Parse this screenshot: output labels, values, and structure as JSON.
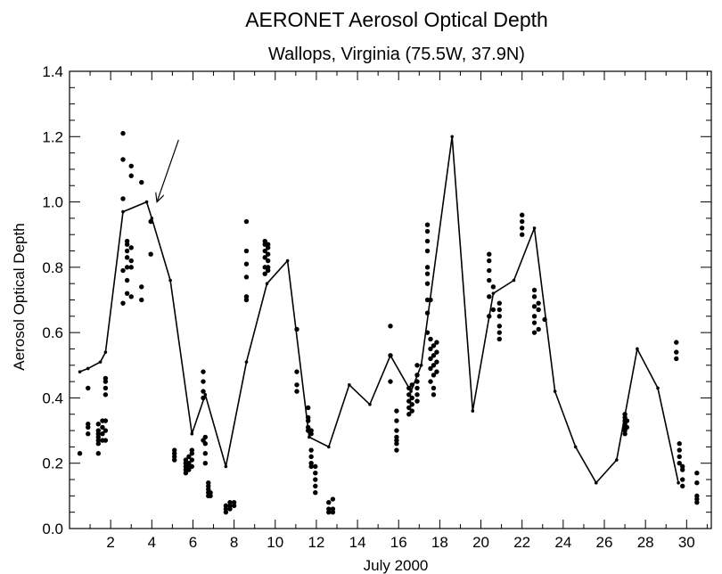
{
  "chart_data": {
    "type": "scatter",
    "title": "AERONET Aerosol Optical Depth",
    "subtitle": "Wallops, Virginia (75.5W, 37.9N)",
    "xlabel": "July 2000",
    "ylabel": "Aerosol Optical Depth",
    "xlim": [
      0,
      31.2
    ],
    "ylim": [
      0,
      1.4
    ],
    "x_ticks": [
      2,
      4,
      6,
      8,
      10,
      12,
      14,
      16,
      18,
      20,
      22,
      24,
      26,
      28,
      30
    ],
    "x_tick_labels": [
      "2",
      "4",
      "6",
      "8",
      "10",
      "12",
      "14",
      "16",
      "18",
      "20",
      "22",
      "24",
      "26",
      "28",
      "30"
    ],
    "y_ticks": [
      0.0,
      0.2,
      0.4,
      0.6,
      0.8,
      1.0,
      1.2,
      1.4
    ],
    "y_tick_labels": [
      "0.0",
      "0.2",
      "0.4",
      "0.6",
      "0.8",
      "1.0",
      "1.2",
      "1.4"
    ],
    "grid": false,
    "series": [
      {
        "style": "dots",
        "points": [
          [
            0.5,
            0.23
          ],
          [
            0.9,
            0.29
          ],
          [
            0.9,
            0.31
          ],
          [
            0.9,
            0.32
          ],
          [
            0.9,
            0.43
          ],
          [
            1.4,
            0.23
          ],
          [
            1.4,
            0.26
          ],
          [
            1.4,
            0.27
          ],
          [
            1.4,
            0.28
          ],
          [
            1.4,
            0.29
          ],
          [
            1.4,
            0.3
          ],
          [
            1.4,
            0.32
          ],
          [
            1.6,
            0.27
          ],
          [
            1.6,
            0.29
          ],
          [
            1.6,
            0.31
          ],
          [
            1.6,
            0.33
          ],
          [
            1.75,
            0.27
          ],
          [
            1.75,
            0.3
          ],
          [
            1.75,
            0.33
          ],
          [
            1.75,
            0.41
          ],
          [
            1.75,
            0.43
          ],
          [
            1.75,
            0.45
          ],
          [
            1.75,
            0.46
          ],
          [
            2.6,
            0.69
          ],
          [
            2.6,
            0.79
          ],
          [
            2.6,
            1.01
          ],
          [
            2.6,
            1.13
          ],
          [
            2.6,
            1.21
          ],
          [
            2.8,
            0.72
          ],
          [
            2.8,
            0.76
          ],
          [
            2.8,
            0.8
          ],
          [
            2.8,
            0.83
          ],
          [
            2.8,
            0.85
          ],
          [
            2.8,
            0.87
          ],
          [
            2.8,
            0.88
          ],
          [
            3.0,
            0.71
          ],
          [
            3.0,
            0.8
          ],
          [
            3.0,
            0.82
          ],
          [
            3.0,
            0.86
          ],
          [
            3.0,
            1.08
          ],
          [
            3.0,
            1.11
          ],
          [
            3.5,
            0.7
          ],
          [
            3.5,
            0.74
          ],
          [
            3.5,
            1.06
          ],
          [
            3.95,
            0.84
          ],
          [
            3.95,
            0.94
          ],
          [
            5.1,
            0.21
          ],
          [
            5.1,
            0.22
          ],
          [
            5.1,
            0.23
          ],
          [
            5.1,
            0.24
          ],
          [
            5.65,
            0.17
          ],
          [
            5.65,
            0.18
          ],
          [
            5.65,
            0.19
          ],
          [
            5.65,
            0.2
          ],
          [
            5.65,
            0.21
          ],
          [
            5.8,
            0.18
          ],
          [
            5.8,
            0.19
          ],
          [
            5.8,
            0.2
          ],
          [
            5.8,
            0.22
          ],
          [
            5.95,
            0.19
          ],
          [
            5.95,
            0.21
          ],
          [
            5.95,
            0.23
          ],
          [
            5.95,
            0.24
          ],
          [
            6.5,
            0.27
          ],
          [
            6.5,
            0.4
          ],
          [
            6.5,
            0.42
          ],
          [
            6.5,
            0.45
          ],
          [
            6.5,
            0.48
          ],
          [
            6.6,
            0.2
          ],
          [
            6.6,
            0.23
          ],
          [
            6.6,
            0.26
          ],
          [
            6.6,
            0.28
          ],
          [
            6.75,
            0.1
          ],
          [
            6.75,
            0.11
          ],
          [
            6.75,
            0.12
          ],
          [
            6.75,
            0.13
          ],
          [
            6.75,
            0.14
          ],
          [
            6.85,
            0.1
          ],
          [
            6.85,
            0.11
          ],
          [
            7.6,
            0.05
          ],
          [
            7.6,
            0.06
          ],
          [
            7.6,
            0.07
          ],
          [
            7.8,
            0.06
          ],
          [
            7.8,
            0.07
          ],
          [
            7.8,
            0.08
          ],
          [
            8.0,
            0.07
          ],
          [
            8.0,
            0.08
          ],
          [
            8.6,
            0.7
          ],
          [
            8.6,
            0.71
          ],
          [
            8.6,
            0.77
          ],
          [
            8.6,
            0.81
          ],
          [
            8.6,
            0.85
          ],
          [
            8.6,
            0.94
          ],
          [
            9.5,
            0.78
          ],
          [
            9.5,
            0.8
          ],
          [
            9.5,
            0.83
          ],
          [
            9.5,
            0.85
          ],
          [
            9.5,
            0.87
          ],
          [
            9.5,
            0.88
          ],
          [
            9.65,
            0.79
          ],
          [
            9.65,
            0.8
          ],
          [
            9.65,
            0.82
          ],
          [
            9.65,
            0.84
          ],
          [
            9.65,
            0.86
          ],
          [
            9.65,
            0.87
          ],
          [
            11.05,
            0.61
          ],
          [
            11.05,
            0.42
          ],
          [
            11.05,
            0.44
          ],
          [
            11.05,
            0.48
          ],
          [
            11.6,
            0.37
          ],
          [
            11.6,
            0.31
          ],
          [
            11.6,
            0.33
          ],
          [
            11.6,
            0.34
          ],
          [
            11.6,
            0.3
          ],
          [
            11.75,
            0.19
          ],
          [
            11.75,
            0.2
          ],
          [
            11.75,
            0.22
          ],
          [
            11.75,
            0.24
          ],
          [
            11.75,
            0.29
          ],
          [
            11.75,
            0.3
          ],
          [
            11.95,
            0.11
          ],
          [
            11.95,
            0.13
          ],
          [
            11.95,
            0.15
          ],
          [
            11.95,
            0.17
          ],
          [
            11.95,
            0.19
          ],
          [
            12.6,
            0.05
          ],
          [
            12.6,
            0.06
          ],
          [
            12.6,
            0.08
          ],
          [
            12.8,
            0.05
          ],
          [
            12.8,
            0.06
          ],
          [
            12.8,
            0.09
          ],
          [
            15.6,
            0.62
          ],
          [
            15.6,
            0.53
          ],
          [
            15.6,
            0.45
          ],
          [
            15.9,
            0.24
          ],
          [
            15.9,
            0.26
          ],
          [
            15.9,
            0.27
          ],
          [
            15.9,
            0.28
          ],
          [
            15.9,
            0.3
          ],
          [
            15.9,
            0.33
          ],
          [
            15.9,
            0.36
          ],
          [
            16.5,
            0.35
          ],
          [
            16.5,
            0.37
          ],
          [
            16.5,
            0.39
          ],
          [
            16.5,
            0.41
          ],
          [
            16.5,
            0.43
          ],
          [
            16.65,
            0.36
          ],
          [
            16.65,
            0.38
          ],
          [
            16.65,
            0.4
          ],
          [
            16.65,
            0.44
          ],
          [
            16.9,
            0.39
          ],
          [
            16.9,
            0.41
          ],
          [
            16.9,
            0.43
          ],
          [
            16.9,
            0.45
          ],
          [
            16.9,
            0.47
          ],
          [
            16.9,
            0.5
          ],
          [
            17.4,
            0.6
          ],
          [
            17.4,
            0.66
          ],
          [
            17.4,
            0.7
          ],
          [
            17.4,
            0.75
          ],
          [
            17.4,
            0.78
          ],
          [
            17.4,
            0.8
          ],
          [
            17.4,
            0.85
          ],
          [
            17.4,
            0.88
          ],
          [
            17.4,
            0.91
          ],
          [
            17.4,
            0.93
          ],
          [
            17.55,
            0.45
          ],
          [
            17.55,
            0.49
          ],
          [
            17.55,
            0.52
          ],
          [
            17.55,
            0.55
          ],
          [
            17.55,
            0.58
          ],
          [
            17.55,
            0.7
          ],
          [
            17.7,
            0.41
          ],
          [
            17.7,
            0.43
          ],
          [
            17.7,
            0.47
          ],
          [
            17.7,
            0.5
          ],
          [
            17.7,
            0.53
          ],
          [
            17.7,
            0.56
          ],
          [
            17.85,
            0.48
          ],
          [
            17.85,
            0.51
          ],
          [
            17.85,
            0.54
          ],
          [
            17.85,
            0.57
          ],
          [
            20.4,
            0.65
          ],
          [
            20.4,
            0.71
          ],
          [
            20.4,
            0.76
          ],
          [
            20.4,
            0.79
          ],
          [
            20.4,
            0.82
          ],
          [
            20.4,
            0.84
          ],
          [
            20.6,
            0.67
          ],
          [
            20.6,
            0.74
          ],
          [
            20.9,
            0.58
          ],
          [
            20.9,
            0.6
          ],
          [
            20.9,
            0.62
          ],
          [
            20.9,
            0.65
          ],
          [
            20.9,
            0.67
          ],
          [
            20.9,
            0.69
          ],
          [
            22.0,
            0.9
          ],
          [
            22.0,
            0.92
          ],
          [
            22.0,
            0.94
          ],
          [
            22.0,
            0.96
          ],
          [
            22.6,
            0.6
          ],
          [
            22.6,
            0.63
          ],
          [
            22.6,
            0.65
          ],
          [
            22.6,
            0.68
          ],
          [
            22.6,
            0.71
          ],
          [
            22.6,
            0.73
          ],
          [
            22.8,
            0.61
          ],
          [
            22.8,
            0.67
          ],
          [
            22.8,
            0.69
          ],
          [
            23.1,
            0.64
          ],
          [
            27.0,
            0.29
          ],
          [
            27.0,
            0.3
          ],
          [
            27.0,
            0.31
          ],
          [
            27.0,
            0.32
          ],
          [
            27.0,
            0.33
          ],
          [
            27.0,
            0.34
          ],
          [
            27.0,
            0.35
          ],
          [
            27.1,
            0.31
          ],
          [
            27.1,
            0.33
          ],
          [
            29.5,
            0.52
          ],
          [
            29.5,
            0.54
          ],
          [
            29.5,
            0.57
          ],
          [
            29.65,
            0.2
          ],
          [
            29.65,
            0.22
          ],
          [
            29.65,
            0.24
          ],
          [
            29.65,
            0.26
          ],
          [
            29.8,
            0.13
          ],
          [
            29.8,
            0.15
          ],
          [
            29.8,
            0.18
          ],
          [
            29.8,
            0.19
          ],
          [
            30.5,
            0.08
          ],
          [
            30.5,
            0.09
          ],
          [
            30.5,
            0.1
          ],
          [
            30.5,
            0.14
          ],
          [
            30.5,
            0.17
          ]
        ]
      },
      {
        "style": "line-with-markers",
        "points": [
          [
            0.5,
            0.48
          ],
          [
            0.9,
            0.49
          ],
          [
            1.5,
            0.51
          ],
          [
            1.75,
            0.54
          ],
          [
            2.6,
            0.97
          ],
          [
            3.75,
            1.0
          ],
          [
            4.0,
            0.95
          ],
          [
            4.9,
            0.76
          ],
          [
            5.95,
            0.29
          ],
          [
            6.6,
            0.41
          ],
          [
            7.6,
            0.19
          ],
          [
            8.6,
            0.51
          ],
          [
            9.6,
            0.75
          ],
          [
            10.6,
            0.82
          ],
          [
            11.65,
            0.28
          ],
          [
            12.6,
            0.25
          ],
          [
            13.6,
            0.44
          ],
          [
            14.6,
            0.38
          ],
          [
            15.6,
            0.53
          ],
          [
            16.6,
            0.42
          ],
          [
            17.1,
            0.5
          ],
          [
            18.6,
            1.2
          ],
          [
            19.6,
            0.36
          ],
          [
            20.6,
            0.72
          ],
          [
            21.6,
            0.76
          ],
          [
            22.6,
            0.92
          ],
          [
            23.6,
            0.42
          ],
          [
            24.6,
            0.25
          ],
          [
            25.6,
            0.14
          ],
          [
            26.6,
            0.21
          ],
          [
            27.6,
            0.55
          ],
          [
            28.6,
            0.43
          ],
          [
            29.6,
            0.14
          ]
        ]
      }
    ],
    "annotations": [
      {
        "type": "arrow",
        "from": [
          5.3,
          1.19
        ],
        "to": [
          4.25,
          1.0
        ]
      }
    ]
  }
}
